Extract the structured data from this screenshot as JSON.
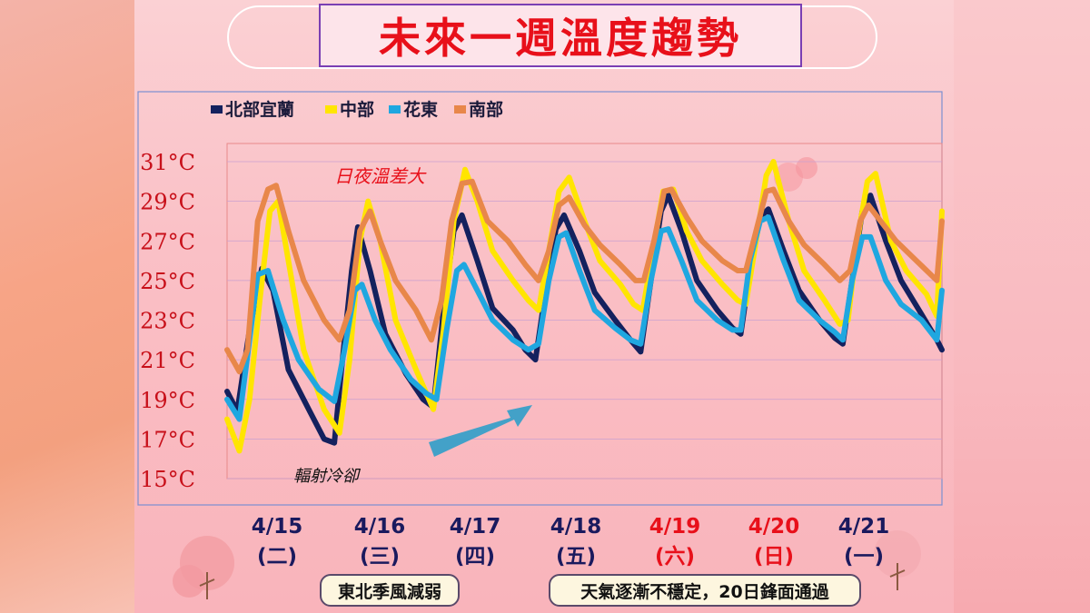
{
  "title": "未來一週溫度趨勢",
  "chart_data": {
    "type": "line",
    "title": "未來一週溫度趨勢",
    "xlabel": "",
    "ylabel": "",
    "ylim": [
      15,
      31
    ],
    "y_ticks": [
      "15°C",
      "17°C",
      "19°C",
      "21°C",
      "23°C",
      "25°C",
      "27°C",
      "29°C",
      "31°C"
    ],
    "y_tick_values": [
      15,
      17,
      19,
      21,
      23,
      25,
      27,
      29,
      31
    ],
    "x_range": [
      0,
      7
    ],
    "dates": [
      {
        "date": "4/15",
        "weekday": "(二)",
        "color": "#1a1a5e"
      },
      {
        "date": "4/16",
        "weekday": "(三)",
        "color": "#1a1a5e"
      },
      {
        "date": "4/17",
        "weekday": "(四)",
        "color": "#1a1a5e"
      },
      {
        "date": "4/18",
        "weekday": "(五)",
        "color": "#1a1a5e"
      },
      {
        "date": "4/19",
        "weekday": "(六)",
        "color": "#e8101a"
      },
      {
        "date": "4/20",
        "weekday": "(日)",
        "color": "#e8101a"
      },
      {
        "date": "4/21",
        "weekday": "(一)",
        "color": "#1a1a5e"
      }
    ],
    "legend_position": "top-left",
    "series": [
      {
        "name": "北部宜蘭",
        "color": "#14215e",
        "points": [
          [
            0,
            19.4
          ],
          [
            0.1,
            18.4
          ],
          [
            0.22,
            22.5
          ],
          [
            0.34,
            25.6
          ],
          [
            0.45,
            24.5
          ],
          [
            0.6,
            20.5
          ],
          [
            0.8,
            18.5
          ],
          [
            0.95,
            17.0
          ],
          [
            1.05,
            16.8
          ],
          [
            1.12,
            20.5
          ],
          [
            1.22,
            25.5
          ],
          [
            1.28,
            27.7
          ],
          [
            1.4,
            25.5
          ],
          [
            1.55,
            22.3
          ],
          [
            1.75,
            20.3
          ],
          [
            1.92,
            19.0
          ],
          [
            2.02,
            18.6
          ],
          [
            2.12,
            23.5
          ],
          [
            2.22,
            27.5
          ],
          [
            2.3,
            28.3
          ],
          [
            2.45,
            26.0
          ],
          [
            2.6,
            23.6
          ],
          [
            2.8,
            22.5
          ],
          [
            2.92,
            21.5
          ],
          [
            3.02,
            21.0
          ],
          [
            3.12,
            24.5
          ],
          [
            3.22,
            27.6
          ],
          [
            3.3,
            28.3
          ],
          [
            3.45,
            26.5
          ],
          [
            3.6,
            24.4
          ],
          [
            3.8,
            23.0
          ],
          [
            3.95,
            22.0
          ],
          [
            4.05,
            21.4
          ],
          [
            4.15,
            25.0
          ],
          [
            4.25,
            28.5
          ],
          [
            4.32,
            29.3
          ],
          [
            4.45,
            27.5
          ],
          [
            4.6,
            25.0
          ],
          [
            4.8,
            23.5
          ],
          [
            4.95,
            22.6
          ],
          [
            5.03,
            22.3
          ],
          [
            5.12,
            25.5
          ],
          [
            5.22,
            28.2
          ],
          [
            5.3,
            28.6
          ],
          [
            5.45,
            26.5
          ],
          [
            5.6,
            24.5
          ],
          [
            5.8,
            23.0
          ],
          [
            5.95,
            22.1
          ],
          [
            6.03,
            21.8
          ],
          [
            6.12,
            25.0
          ],
          [
            6.22,
            28.5
          ],
          [
            6.3,
            29.3
          ],
          [
            6.45,
            27.0
          ],
          [
            6.6,
            25.0
          ],
          [
            6.8,
            23.3
          ],
          [
            6.95,
            22.0
          ],
          [
            7.0,
            21.5
          ]
        ]
      },
      {
        "name": "中部",
        "color": "#ffe500",
        "points": [
          [
            0,
            18.0
          ],
          [
            0.12,
            16.4
          ],
          [
            0.22,
            19.0
          ],
          [
            0.32,
            24.0
          ],
          [
            0.42,
            28.5
          ],
          [
            0.5,
            29.0
          ],
          [
            0.6,
            26.0
          ],
          [
            0.75,
            21.5
          ],
          [
            0.95,
            18.5
          ],
          [
            1.1,
            17.3
          ],
          [
            1.2,
            21.0
          ],
          [
            1.3,
            27.0
          ],
          [
            1.38,
            29.0
          ],
          [
            1.5,
            27.0
          ],
          [
            1.65,
            23.0
          ],
          [
            1.85,
            20.5
          ],
          [
            2.02,
            18.5
          ],
          [
            2.12,
            22.5
          ],
          [
            2.22,
            28.0
          ],
          [
            2.33,
            30.6
          ],
          [
            2.45,
            29.0
          ],
          [
            2.6,
            26.5
          ],
          [
            2.8,
            25.0
          ],
          [
            2.95,
            24.0
          ],
          [
            3.05,
            23.5
          ],
          [
            3.15,
            26.5
          ],
          [
            3.25,
            29.5
          ],
          [
            3.35,
            30.2
          ],
          [
            3.5,
            28.0
          ],
          [
            3.65,
            26.0
          ],
          [
            3.85,
            24.8
          ],
          [
            3.98,
            23.8
          ],
          [
            4.07,
            23.5
          ],
          [
            4.17,
            26.5
          ],
          [
            4.27,
            29.5
          ],
          [
            4.37,
            29.6
          ],
          [
            4.5,
            27.5
          ],
          [
            4.65,
            26.0
          ],
          [
            4.85,
            24.8
          ],
          [
            5.0,
            24.0
          ],
          [
            5.08,
            23.8
          ],
          [
            5.18,
            27.0
          ],
          [
            5.28,
            30.3
          ],
          [
            5.35,
            31.0
          ],
          [
            5.5,
            28.0
          ],
          [
            5.65,
            25.5
          ],
          [
            5.85,
            24.0
          ],
          [
            6.0,
            22.8
          ],
          [
            6.08,
            23.0
          ],
          [
            6.17,
            27.0
          ],
          [
            6.27,
            30.0
          ],
          [
            6.35,
            30.4
          ],
          [
            6.5,
            27.0
          ],
          [
            6.65,
            25.5
          ],
          [
            6.85,
            24.3
          ],
          [
            6.95,
            23.2
          ],
          [
            7.0,
            28.5
          ]
        ]
      },
      {
        "name": "花東",
        "color": "#1fa7e0",
        "points": [
          [
            0,
            19.0
          ],
          [
            0.12,
            18.0
          ],
          [
            0.22,
            22.0
          ],
          [
            0.3,
            25.3
          ],
          [
            0.4,
            25.5
          ],
          [
            0.55,
            23.0
          ],
          [
            0.7,
            21.0
          ],
          [
            0.9,
            19.5
          ],
          [
            1.05,
            18.9
          ],
          [
            1.15,
            21.5
          ],
          [
            1.25,
            24.5
          ],
          [
            1.32,
            24.8
          ],
          [
            1.45,
            23.0
          ],
          [
            1.6,
            21.5
          ],
          [
            1.8,
            20.0
          ],
          [
            1.95,
            19.3
          ],
          [
            2.05,
            19.0
          ],
          [
            2.15,
            22.5
          ],
          [
            2.25,
            25.5
          ],
          [
            2.32,
            25.8
          ],
          [
            2.45,
            24.5
          ],
          [
            2.6,
            23.0
          ],
          [
            2.8,
            22.0
          ],
          [
            2.95,
            21.5
          ],
          [
            3.05,
            21.8
          ],
          [
            3.15,
            25.0
          ],
          [
            3.25,
            27.2
          ],
          [
            3.32,
            27.4
          ],
          [
            3.45,
            25.5
          ],
          [
            3.6,
            23.5
          ],
          [
            3.8,
            22.6
          ],
          [
            3.95,
            22.0
          ],
          [
            4.05,
            21.8
          ],
          [
            4.15,
            25.0
          ],
          [
            4.25,
            27.5
          ],
          [
            4.32,
            27.6
          ],
          [
            4.45,
            26.0
          ],
          [
            4.6,
            24.0
          ],
          [
            4.8,
            23.0
          ],
          [
            4.95,
            22.5
          ],
          [
            5.03,
            22.5
          ],
          [
            5.12,
            26.0
          ],
          [
            5.22,
            28.0
          ],
          [
            5.3,
            28.2
          ],
          [
            5.45,
            26.0
          ],
          [
            5.6,
            24.0
          ],
          [
            5.8,
            23.0
          ],
          [
            5.95,
            22.4
          ],
          [
            6.03,
            22.0
          ],
          [
            6.12,
            25.0
          ],
          [
            6.22,
            27.2
          ],
          [
            6.3,
            27.2
          ],
          [
            6.45,
            25.0
          ],
          [
            6.6,
            23.8
          ],
          [
            6.8,
            23.0
          ],
          [
            6.95,
            22.0
          ],
          [
            7.0,
            24.5
          ]
        ]
      },
      {
        "name": "南部",
        "color": "#e8874a",
        "points": [
          [
            0,
            21.5
          ],
          [
            0.12,
            20.4
          ],
          [
            0.2,
            21.5
          ],
          [
            0.3,
            28.0
          ],
          [
            0.4,
            29.6
          ],
          [
            0.48,
            29.8
          ],
          [
            0.6,
            27.5
          ],
          [
            0.75,
            25.0
          ],
          [
            0.95,
            23.0
          ],
          [
            1.1,
            22.0
          ],
          [
            1.2,
            23.5
          ],
          [
            1.3,
            27.5
          ],
          [
            1.4,
            28.5
          ],
          [
            1.5,
            27.0
          ],
          [
            1.65,
            25.0
          ],
          [
            1.85,
            23.5
          ],
          [
            2.0,
            22.0
          ],
          [
            2.1,
            24.0
          ],
          [
            2.2,
            28.0
          ],
          [
            2.3,
            29.9
          ],
          [
            2.4,
            30.0
          ],
          [
            2.55,
            28.0
          ],
          [
            2.75,
            27.0
          ],
          [
            2.92,
            25.8
          ],
          [
            3.05,
            25.0
          ],
          [
            3.15,
            26.5
          ],
          [
            3.25,
            28.8
          ],
          [
            3.35,
            29.2
          ],
          [
            3.5,
            27.8
          ],
          [
            3.65,
            26.8
          ],
          [
            3.85,
            25.8
          ],
          [
            4.0,
            25.0
          ],
          [
            4.08,
            25.0
          ],
          [
            4.18,
            27.0
          ],
          [
            4.28,
            29.5
          ],
          [
            4.35,
            29.6
          ],
          [
            4.5,
            28.2
          ],
          [
            4.65,
            27.0
          ],
          [
            4.85,
            26.0
          ],
          [
            5.0,
            25.5
          ],
          [
            5.08,
            25.5
          ],
          [
            5.18,
            27.5
          ],
          [
            5.28,
            29.5
          ],
          [
            5.35,
            29.6
          ],
          [
            5.5,
            28.0
          ],
          [
            5.65,
            26.8
          ],
          [
            5.85,
            25.8
          ],
          [
            6.0,
            25.0
          ],
          [
            6.1,
            25.5
          ],
          [
            6.2,
            28.0
          ],
          [
            6.28,
            28.8
          ],
          [
            6.4,
            28.0
          ],
          [
            6.55,
            27.0
          ],
          [
            6.75,
            26.0
          ],
          [
            6.95,
            25.0
          ],
          [
            7.0,
            28.0
          ]
        ]
      }
    ],
    "annotations": [
      {
        "text": "日夜溫差大"
      },
      {
        "text": "輻射冷卻"
      }
    ]
  },
  "footer": {
    "left_pill": "東北季風減弱",
    "right_pill": "天氣逐漸不穩定，20日鋒面通過"
  }
}
